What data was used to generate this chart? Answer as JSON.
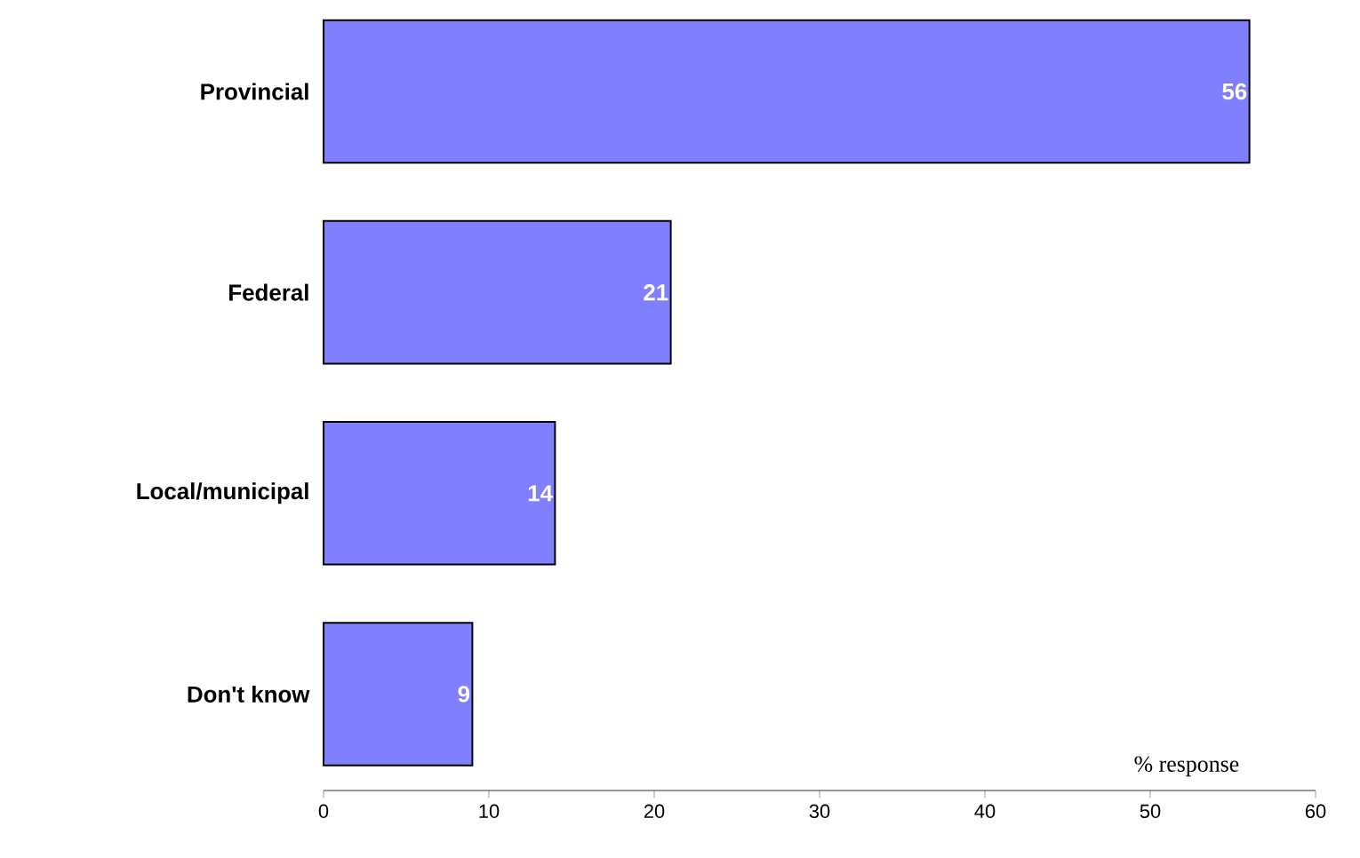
{
  "chart_data": {
    "type": "bar",
    "orientation": "horizontal",
    "xlabel": "% response",
    "categories": [
      "Provincial",
      "Federal",
      "Local/municipal",
      "Don't know"
    ],
    "values": [
      56,
      21,
      14,
      9
    ],
    "color": "#8080ff",
    "data_labels": true,
    "xlim": [
      0,
      60
    ],
    "xticks": [
      0,
      10,
      20,
      30,
      40,
      50,
      60
    ]
  }
}
